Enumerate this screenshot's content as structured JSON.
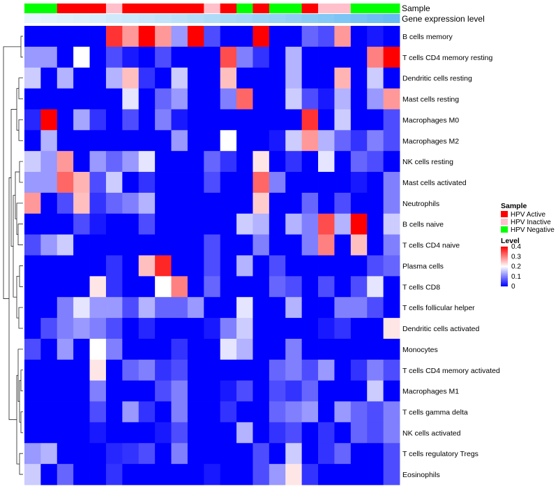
{
  "chart_data": {
    "type": "heatmap",
    "title": "",
    "row_labels": [
      "B cells memory",
      "T cells CD4 memory resting",
      "Dendritic cells resting",
      "Mast cells resting",
      "Macrophages M0",
      "Macrophages M2",
      "NK cells resting",
      "Mast cells activated",
      "Neutrophils",
      "B cells naive",
      "T cells CD4 naive",
      "Plasma cells",
      "T cells CD8",
      "T cells follicular helper",
      "Dendritic cells activated",
      "Monocytes",
      "T cells CD4 memory activated",
      "Macrophages M1",
      "T cells gamma delta",
      "NK cells activated",
      "T cells regulatory  Tregs",
      "Eosinophils"
    ],
    "column_annotations": {
      "sample_label": "Sample",
      "gene_label": "Gene expression level",
      "sample_groups": [
        "HPV Negative",
        "HPV Negative",
        "HPV Active",
        "HPV Active",
        "HPV Active",
        "HPV Inactive",
        "HPV Active",
        "HPV Active",
        "HPV Active",
        "HPV Active",
        "HPV Active",
        "HPV Inactive",
        "HPV Active",
        "HPV Negative",
        "HPV Active",
        "HPV Negative",
        "HPV Negative",
        "HPV Active",
        "HPV Inactive",
        "HPV Inactive",
        "HPV Negative",
        "HPV Negative",
        "HPV Negative"
      ],
      "gene_expression_level": [
        0.05,
        0.08,
        0.1,
        0.13,
        0.16,
        0.2,
        0.23,
        0.26,
        0.3,
        0.34,
        0.38,
        0.42,
        0.46,
        0.5,
        0.54,
        0.58,
        0.62,
        0.66,
        0.7,
        0.75,
        0.8,
        0.85,
        0.9
      ]
    },
    "values": [
      [
        0,
        0,
        0,
        0,
        0,
        0.36,
        0.28,
        0.4,
        0.28,
        0.12,
        0.4,
        0.06,
        0,
        0,
        0.4,
        0,
        0,
        0.08,
        0.06,
        0.28,
        0,
        0.02,
        0
      ],
      [
        0.12,
        0.12,
        0,
        0.2,
        0,
        0.06,
        0.02,
        0,
        0.06,
        0,
        0,
        0,
        0.34,
        0.1,
        0.04,
        0,
        0.14,
        0,
        0,
        0,
        0,
        0.3,
        0.4
      ],
      [
        0.16,
        0,
        0.14,
        0,
        0,
        0.14,
        0.25,
        0.04,
        0,
        0.16,
        0,
        0,
        0.25,
        0,
        0,
        0,
        0.14,
        0,
        0,
        0.26,
        0,
        0.16,
        0
      ],
      [
        0,
        0,
        0,
        0,
        0,
        0,
        0.18,
        0,
        0.08,
        0.12,
        0,
        0,
        0.1,
        0.32,
        0,
        0,
        0.16,
        0.06,
        0.02,
        0.14,
        0,
        0.12,
        0.28
      ],
      [
        0.03,
        0.4,
        0,
        0.13,
        0.04,
        0,
        0.06,
        0,
        0.1,
        0.02,
        0,
        0,
        0,
        0,
        0,
        0,
        0,
        0.36,
        0,
        0.16,
        0,
        0,
        0.06
      ],
      [
        0,
        0.14,
        0,
        0,
        0,
        0,
        0,
        0,
        0,
        0.12,
        0,
        0,
        0.2,
        0,
        0,
        0.02,
        0.16,
        0.28,
        0.14,
        0.08,
        0.04,
        0.1,
        0.06
      ],
      [
        0.16,
        0.12,
        0.28,
        0,
        0.12,
        0.08,
        0.12,
        0.18,
        0,
        0,
        0,
        0.08,
        0.04,
        0,
        0.22,
        0,
        0.04,
        0,
        0.18,
        0,
        0.08,
        0.06,
        0
      ],
      [
        0.12,
        0.12,
        0.32,
        0.26,
        0.06,
        0.16,
        0,
        0.04,
        0,
        0,
        0,
        0.06,
        0,
        0,
        0.32,
        0.1,
        0,
        0,
        0,
        0,
        0.02,
        0,
        0.1
      ],
      [
        0.28,
        0,
        0.06,
        0.25,
        0.04,
        0.08,
        0.1,
        0.14,
        0,
        0,
        0,
        0,
        0,
        0,
        0.24,
        0,
        0,
        0.08,
        0,
        0.06,
        0,
        0,
        0.1
      ],
      [
        0,
        0,
        0,
        0.06,
        0.02,
        0,
        0,
        0.06,
        0,
        0,
        0,
        0,
        0,
        0.16,
        0.14,
        0,
        0.14,
        0.1,
        0.34,
        0.14,
        0.4,
        0,
        0.16
      ],
      [
        0.06,
        0.12,
        0.16,
        0,
        0,
        0,
        0,
        0,
        0,
        0,
        0,
        0.06,
        0,
        0,
        0.1,
        0,
        0,
        0.1,
        0.3,
        0,
        0.25,
        0,
        0.1
      ],
      [
        0,
        0,
        0,
        0,
        0,
        0.04,
        0,
        0.25,
        0.37,
        0,
        0,
        0.06,
        0,
        0.14,
        0,
        0.06,
        0,
        0,
        0,
        0,
        0,
        0.06,
        0.08
      ],
      [
        0,
        0,
        0,
        0,
        0.22,
        0.04,
        0,
        0,
        0.2,
        0.3,
        0,
        0.08,
        0,
        0,
        0,
        0.08,
        0.06,
        0,
        0.06,
        0,
        0.06,
        0.18,
        0
      ],
      [
        0,
        0,
        0.1,
        0.18,
        0.12,
        0.12,
        0.06,
        0.14,
        0.08,
        0.08,
        0.12,
        0,
        0,
        0.18,
        0,
        0,
        0.14,
        0,
        0,
        0.1,
        0.1,
        0.06,
        0
      ],
      [
        0,
        0.06,
        0.1,
        0.12,
        0.1,
        0.06,
        0,
        0.03,
        0,
        0,
        0,
        0.02,
        0.1,
        0.16,
        0,
        0,
        0,
        0,
        0.02,
        0.04,
        0,
        0,
        0.22
      ],
      [
        0.06,
        0,
        0.12,
        0,
        0.2,
        0.1,
        0,
        0,
        0,
        0.04,
        0,
        0,
        0.18,
        0.14,
        0,
        0,
        0.1,
        0,
        0,
        0,
        0,
        0,
        0
      ],
      [
        0,
        0,
        0,
        0,
        0.22,
        0,
        0.08,
        0.1,
        0.04,
        0.06,
        0,
        0,
        0,
        0,
        0,
        0.08,
        0.1,
        0.06,
        0.12,
        0,
        0.04,
        0.1,
        0.06
      ],
      [
        0,
        0,
        0,
        0,
        0.1,
        0,
        0,
        0,
        0.06,
        0.1,
        0,
        0,
        0.02,
        0.06,
        0,
        0.06,
        0.04,
        0.08,
        0,
        0,
        0,
        0.16,
        0
      ],
      [
        0,
        0,
        0,
        0,
        0.06,
        0,
        0.12,
        0.04,
        0,
        0.1,
        0,
        0,
        0.04,
        0,
        0,
        0.08,
        0.1,
        0.12,
        0,
        0.12,
        0.08,
        0.06,
        0.1
      ],
      [
        0,
        0,
        0,
        0,
        0.02,
        0,
        0,
        0,
        0.02,
        0.06,
        0,
        0,
        0,
        0.14,
        0,
        0.04,
        0.06,
        0,
        0.04,
        0,
        0.08,
        0.06,
        0.1
      ],
      [
        0.12,
        0.14,
        0,
        0,
        0,
        0.03,
        0.04,
        0.06,
        0,
        0.1,
        0,
        0,
        0,
        0,
        0.06,
        0,
        0.16,
        0,
        0.04,
        0.08,
        0,
        0,
        0.06
      ],
      [
        0.16,
        0,
        0.08,
        0,
        0,
        0.04,
        0,
        0,
        0,
        0,
        0,
        0.02,
        0,
        0,
        0.06,
        0.12,
        0.22,
        0.04,
        0,
        0,
        0,
        0,
        0.06
      ]
    ],
    "color_scale": {
      "min": 0,
      "max": 0.4,
      "low": "#0000ff",
      "mid": "#ffffff",
      "high": "#ff0000",
      "mid_value": 0.2
    },
    "sample_colors": {
      "HPV Active": "#ff0000",
      "HPV Inactive": "#ffc0cb",
      "HPV Negative": "#00ff00"
    },
    "gene_color_low": "#eff8ff",
    "gene_color_high": "#56b4f0",
    "legend": {
      "sample_title": "Sample",
      "sample_entries": [
        "HPV Active",
        "HPV Inactive",
        "HPV Negative"
      ],
      "level_title": "Level",
      "level_ticks": [
        "0.4",
        "0.3",
        "0.2",
        "0.1",
        "0"
      ],
      "level_tick_values": [
        0.4,
        0.3,
        0.2,
        0.1,
        0
      ],
      "position": "right"
    },
    "dendrogram": "rows"
  }
}
